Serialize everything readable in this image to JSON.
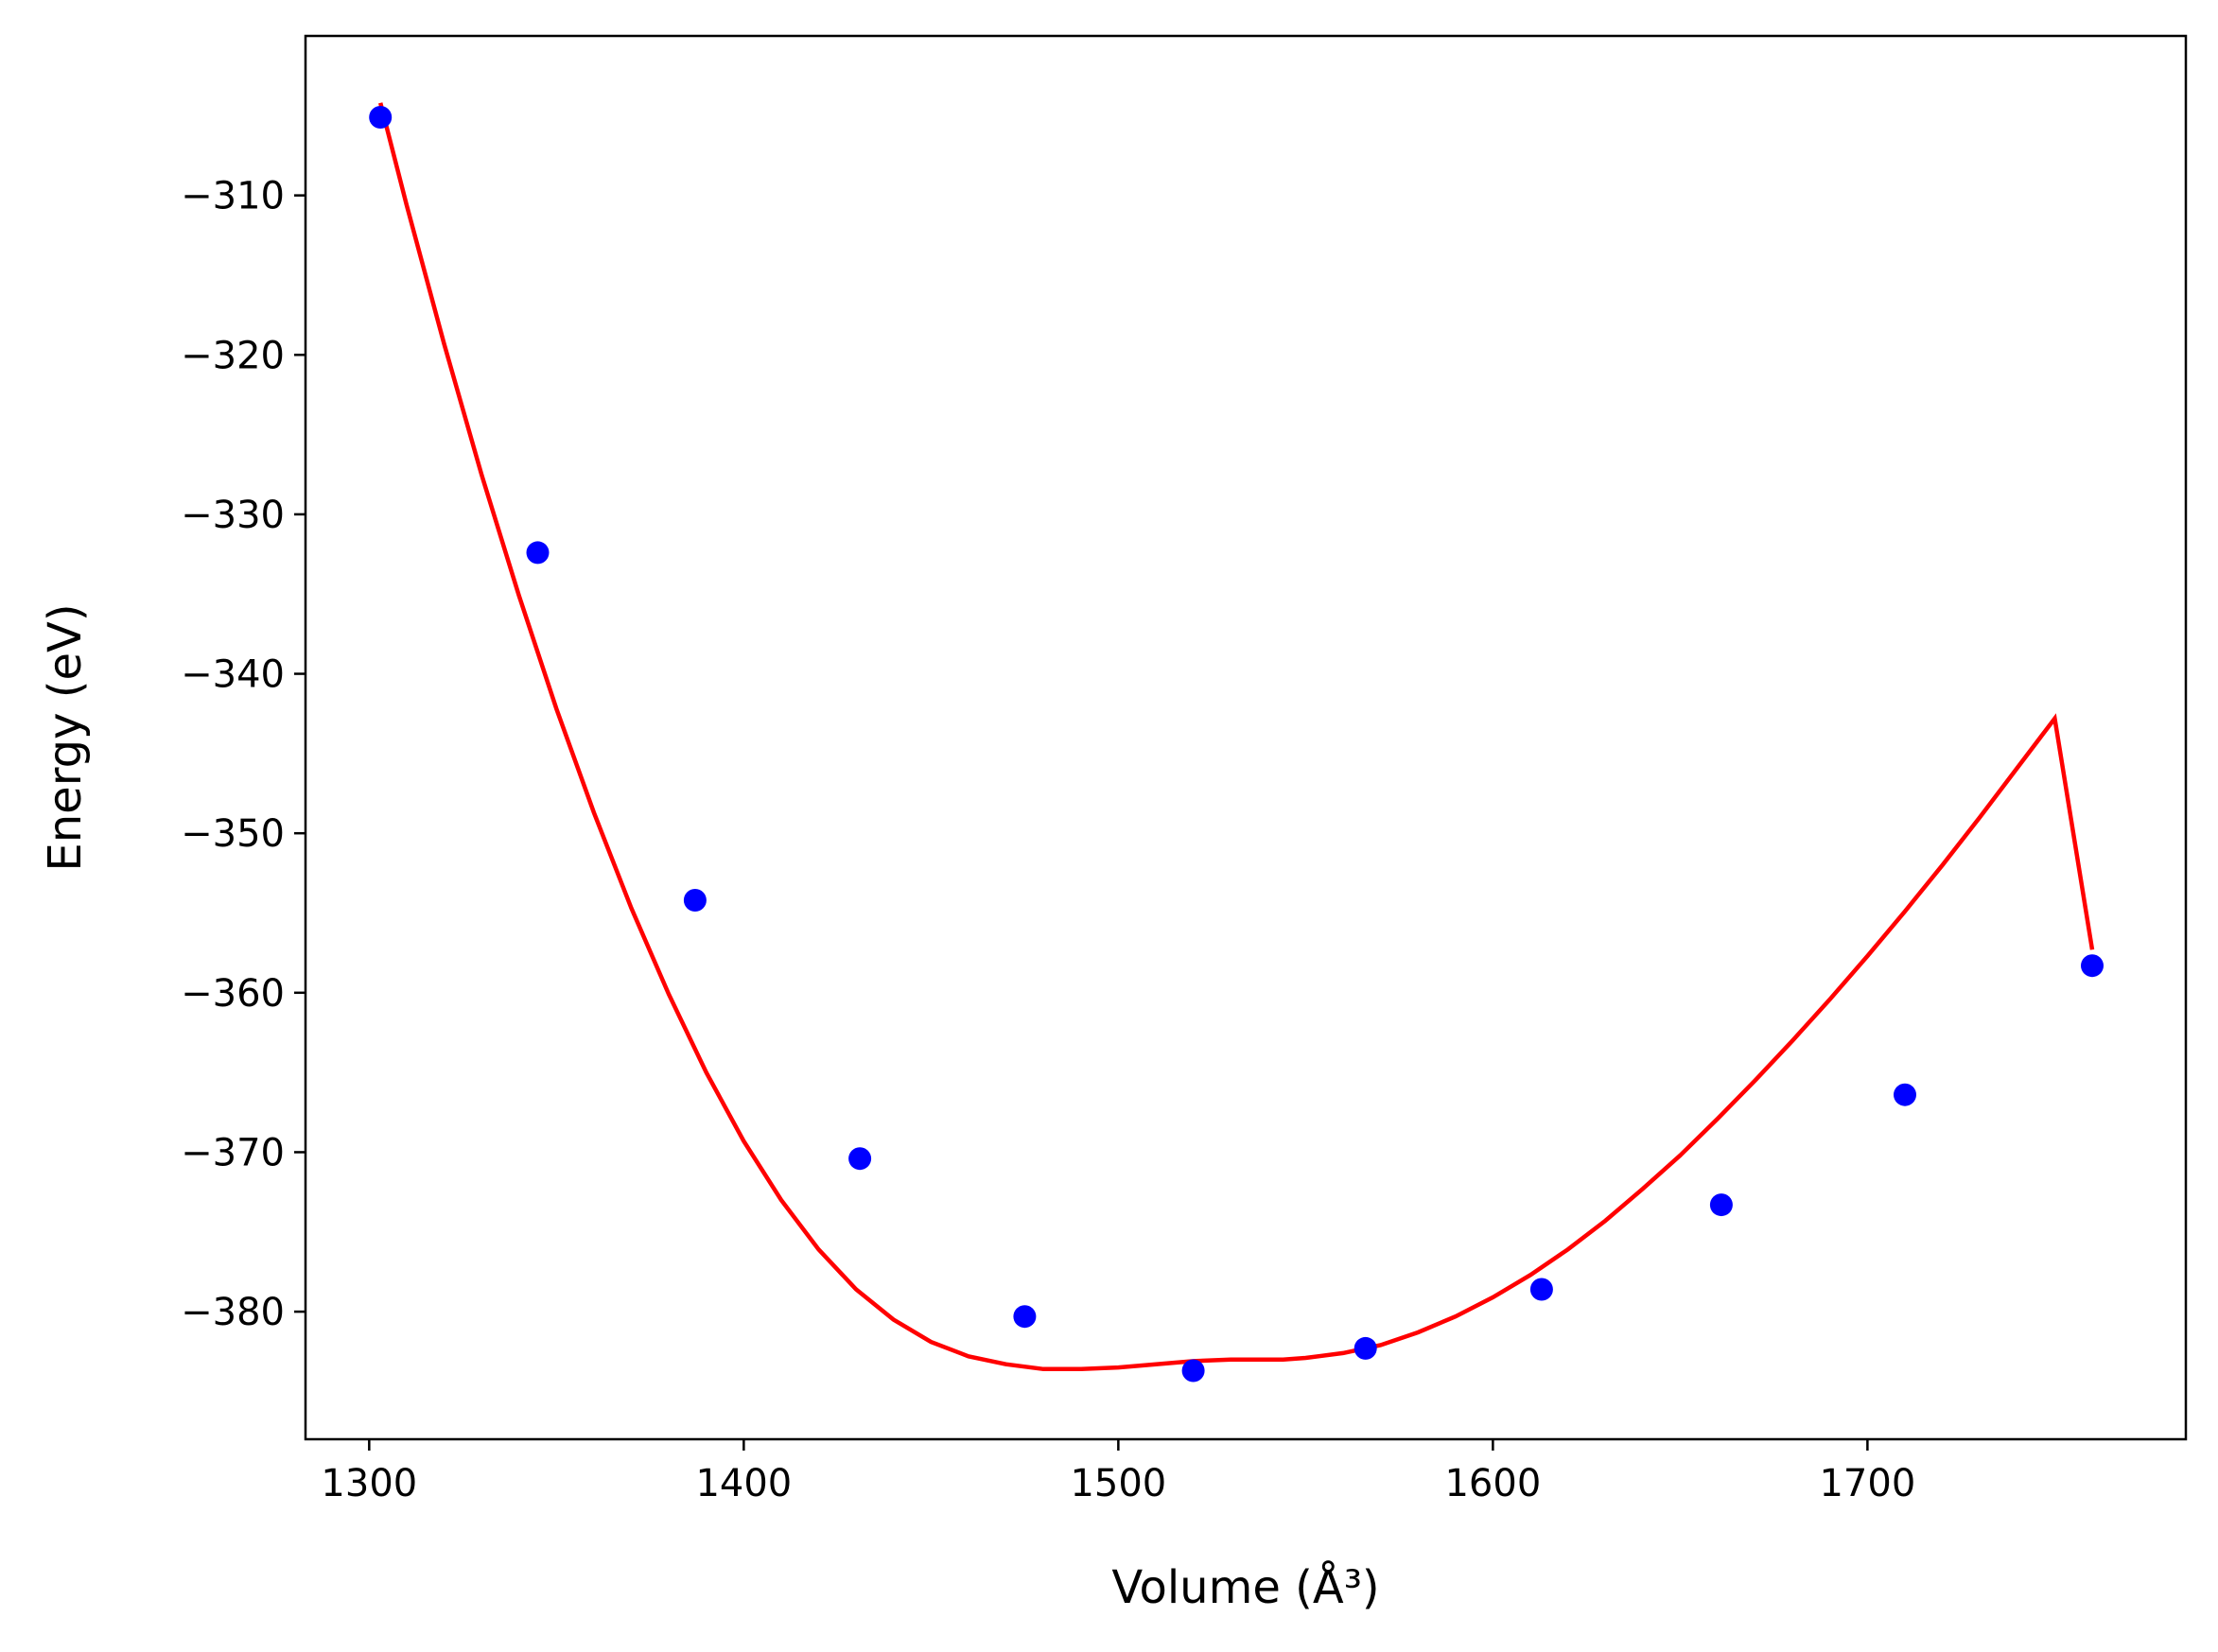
{
  "chart_data": {
    "type": "scatter",
    "xlabel": "Volume (Å³)",
    "ylabel": "Energy (eV)",
    "xlim": [
      1283,
      1785
    ],
    "ylim": [
      -388.0,
      -300.0
    ],
    "xticks": [
      1300,
      1400,
      1500,
      1600,
      1700
    ],
    "yticks": [
      -310,
      -320,
      -330,
      -340,
      -350,
      -360,
      -370,
      -380
    ],
    "grid": false,
    "legend": "none",
    "series": [
      {
        "kind": "points",
        "color": "#0000ff",
        "x": [
          1303,
          1345,
          1387,
          1431,
          1475,
          1520,
          1566,
          1613,
          1661,
          1710,
          1760
        ],
        "y": [
          -305.1,
          -332.4,
          -354.2,
          -370.4,
          -380.3,
          -383.7,
          -382.3,
          -378.6,
          -373.3,
          -366.4,
          -358.3
        ]
      },
      {
        "kind": "fit-line",
        "color": "#ff0000",
        "x": [
          1303,
          1310,
          1320,
          1330,
          1340,
          1350,
          1360,
          1370,
          1380,
          1390,
          1400,
          1410,
          1420,
          1430,
          1440,
          1450,
          1460,
          1470,
          1480,
          1490,
          1500,
          1510,
          1520,
          1530,
          1540,
          1544,
          1550,
          1560,
          1570,
          1580,
          1590,
          1600,
          1610,
          1620,
          1630,
          1640,
          1650,
          1660,
          1670,
          1680,
          1690,
          1700,
          1710,
          1720,
          1730,
          1740,
          1750,
          1760
        ],
        "y": [
          -304.2,
          -310.6,
          -319.3,
          -327.5,
          -335.1,
          -342.2,
          -348.7,
          -354.7,
          -360.1,
          -365.0,
          -369.3,
          -373.0,
          -376.1,
          -378.6,
          -380.5,
          -381.9,
          -382.8,
          -383.3,
          -383.6,
          -383.6,
          -383.5,
          -383.3,
          -383.1,
          -383.0,
          -383.0,
          -383.0,
          -382.9,
          -382.6,
          -382.1,
          -381.3,
          -380.3,
          -379.1,
          -377.7,
          -376.1,
          -374.3,
          -372.3,
          -370.2,
          -367.9,
          -365.5,
          -363.0,
          -360.4,
          -357.7,
          -354.9,
          -352.0,
          -349.0,
          -345.9,
          -342.8,
          -357.3
        ]
      }
    ]
  }
}
